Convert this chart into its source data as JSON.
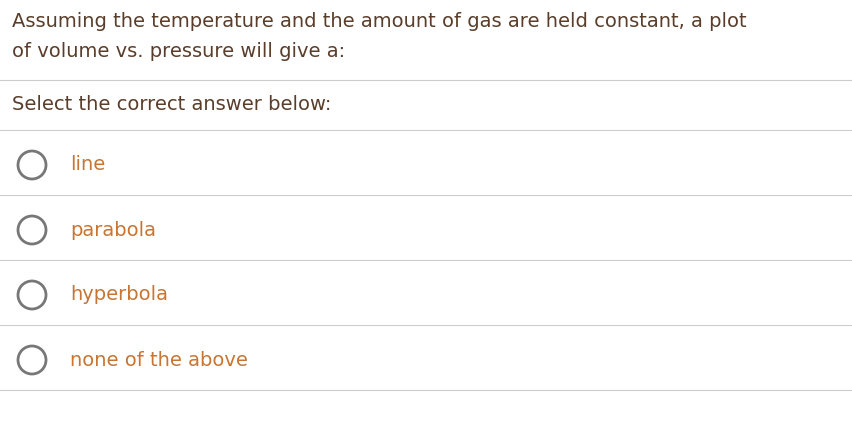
{
  "question_line1": "Assuming the temperature and the amount of gas are held constant, a plot",
  "question_line2": "of volume vs. pressure will give a:",
  "prompt": "Select the correct answer below:",
  "options": [
    "line",
    "parabola",
    "hyperbola",
    "none of the above"
  ],
  "text_color": "#5a3e2b",
  "option_text_color": "#c87533",
  "background_color": "#ffffff",
  "divider_color": "#cccccc",
  "question_fontsize": 14,
  "prompt_fontsize": 14,
  "option_fontsize": 14,
  "circle_color": "#777777",
  "circle_linewidth": 2.0
}
